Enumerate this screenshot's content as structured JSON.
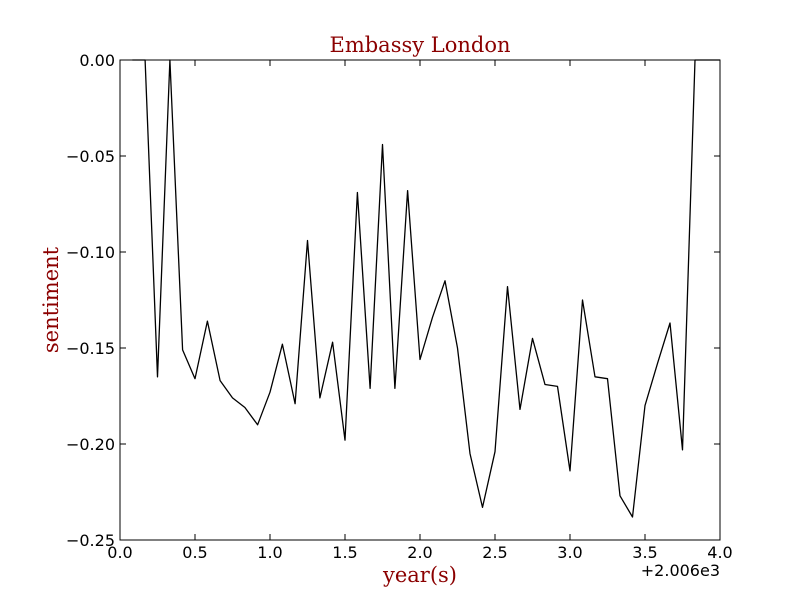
{
  "chart_data": {
    "type": "line",
    "title": "Embassy London",
    "xlabel": "year(s)",
    "ylabel": "sentiment",
    "x_offset_label": "+2.006e3",
    "xlim": [
      0.0,
      4.0
    ],
    "ylim": [
      -0.25,
      0.0
    ],
    "x_ticks": [
      0.0,
      0.5,
      1.0,
      1.5,
      2.0,
      2.5,
      3.0,
      3.5,
      4.0
    ],
    "x_tick_labels": [
      "0.0",
      "0.5",
      "1.0",
      "1.5",
      "2.0",
      "2.5",
      "3.0",
      "3.5",
      "4.0"
    ],
    "y_ticks": [
      0.0,
      -0.05,
      -0.1,
      -0.15,
      -0.2,
      -0.25
    ],
    "y_tick_labels": [
      "0.00",
      "−0.05",
      "−0.10",
      "−0.15",
      "−0.20",
      "−0.25"
    ],
    "grid": false,
    "series": [
      {
        "name": "sentiment",
        "color": "#000000",
        "x": [
          0.083,
          0.167,
          0.25,
          0.333,
          0.417,
          0.5,
          0.583,
          0.667,
          0.75,
          0.833,
          0.917,
          1.0,
          1.083,
          1.167,
          1.25,
          1.333,
          1.417,
          1.5,
          1.583,
          1.667,
          1.75,
          1.833,
          1.917,
          2.0,
          2.083,
          2.167,
          2.25,
          2.333,
          2.417,
          2.5,
          2.583,
          2.667,
          2.75,
          2.833,
          2.917,
          3.0,
          3.083,
          3.167,
          3.25,
          3.333,
          3.417,
          3.5,
          3.583,
          3.667,
          3.75,
          3.833,
          3.917,
          4.0
        ],
        "values": [
          0.0,
          0.0,
          -0.165,
          0.0,
          -0.151,
          -0.166,
          -0.136,
          -0.167,
          -0.176,
          -0.181,
          -0.19,
          -0.173,
          -0.148,
          -0.179,
          -0.094,
          -0.176,
          -0.147,
          -0.198,
          -0.069,
          -0.171,
          -0.044,
          -0.171,
          -0.068,
          -0.156,
          -0.134,
          -0.115,
          -0.15,
          -0.205,
          -0.233,
          -0.204,
          -0.118,
          -0.182,
          -0.145,
          -0.169,
          -0.17,
          -0.214,
          -0.125,
          -0.165,
          -0.166,
          -0.227,
          -0.238,
          -0.18,
          -0.158,
          -0.137,
          -0.203,
          0.0,
          0.0,
          0.0
        ]
      }
    ]
  },
  "colors": {
    "title": "#8b0000",
    "axis_label": "#8b0000",
    "line": "#000000",
    "axes": "#000000"
  }
}
